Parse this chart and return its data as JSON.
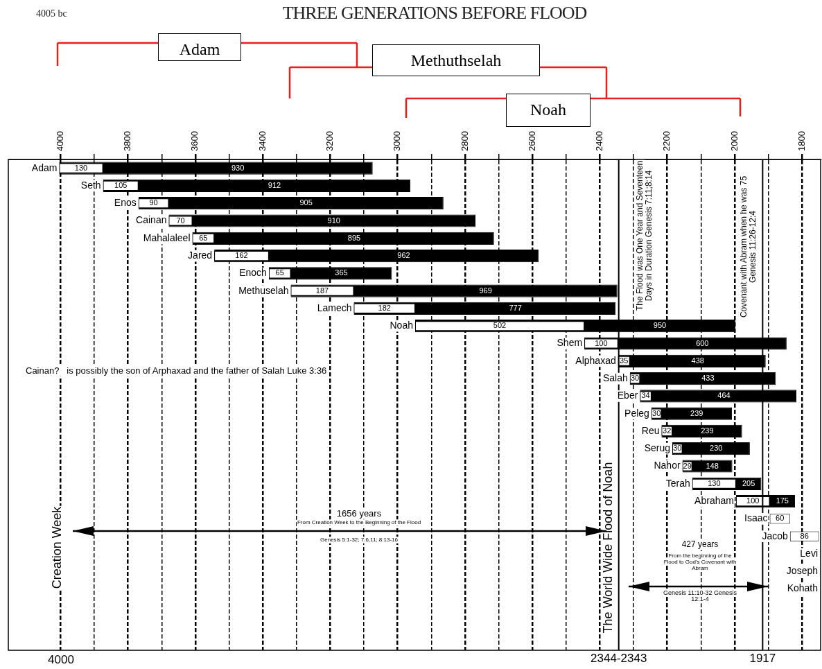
{
  "chart_data": {
    "type": "bar",
    "orientation": "horizontal",
    "title": "THREE GENERATIONS BEFORE FLOOD",
    "categories": [
      "Adam",
      "Seth",
      "Enos",
      "Cainan",
      "Mahalaleel",
      "Jared",
      "Enoch",
      "Methuselah",
      "Lamech",
      "Noah",
      "Shem",
      "Alphaxad",
      "Salah",
      "Eber",
      "Peleg",
      "Reu",
      "Serug",
      "Nahor",
      "Terah",
      "Abraham",
      "Isaac",
      "Jacob",
      "Levi",
      "Joseph",
      "Kohath",
      null,
      null,
      null
    ],
    "series": [
      {
        "color": "#ffffff",
        "base": [
          3874,
          3769,
          3679,
          3609,
          3544,
          3382,
          3317,
          3130,
          2948,
          2446,
          2346,
          2311,
          2281,
          2247,
          2217,
          2185,
          2155,
          2126,
          1996,
          1896,
          1836,
          1750,
          null,
          null,
          null,
          null,
          null,
          null
        ],
        "values": [
          130,
          105,
          90,
          70,
          65,
          162,
          65,
          187,
          182,
          502,
          100,
          35,
          30,
          34,
          30,
          32,
          30,
          29,
          130,
          100,
          60,
          86,
          null,
          null,
          null,
          null,
          null,
          null
        ],
        "value_labels": [
          "130",
          "105",
          "90",
          "70",
          "65",
          "162",
          "65",
          "187",
          "182",
          "502",
          "100",
          "35",
          "30",
          "34",
          "30",
          "32",
          "30",
          "29",
          "130",
          "100",
          "60",
          "86",
          null,
          null,
          null,
          null,
          null,
          null
        ]
      },
      {
        "color": "#000000",
        "base": [
          3074,
          2962,
          2864,
          2769,
          2714,
          2582,
          3017,
          2348,
          2353,
          1998,
          1846,
          1908,
          1878,
          1817,
          2008,
          1978,
          1955,
          2007,
          1921,
          1821,
          null,
          null,
          null,
          null,
          null,
          null,
          null,
          null
        ],
        "values": [
          930,
          912,
          905,
          910,
          895,
          962,
          365,
          969,
          777,
          950,
          600,
          438,
          433,
          464,
          239,
          239,
          230,
          148,
          205,
          175,
          null,
          null,
          null,
          null,
          null,
          null,
          null,
          null
        ],
        "value_labels": [
          "930",
          "912",
          "905",
          "910",
          "895",
          "962",
          "365",
          "969",
          "777",
          "950",
          "600",
          "438",
          "433",
          "464",
          "239",
          "239",
          "230",
          "148",
          "205",
          "175",
          null,
          null,
          null,
          null,
          null,
          null,
          null,
          null
        ]
      }
    ],
    "xlim": [
      4155,
      1745
    ],
    "xticks": [
      4000,
      {
        "value": 3900,
        "label": null
      },
      3800,
      {
        "value": 3700,
        "label": null
      },
      3600,
      {
        "value": 3500,
        "label": null
      },
      3400,
      {
        "value": 3300,
        "label": null
      },
      3200,
      {
        "value": 3100,
        "label": null
      },
      3000,
      {
        "value": 2900,
        "label": null
      },
      2800,
      {
        "value": 2700,
        "label": null
      },
      2600,
      {
        "value": 2500,
        "label": null
      },
      2400,
      {
        "value": 2300,
        "label": null
      },
      2200,
      {
        "value": 2100,
        "label": null
      },
      2000,
      {
        "value": 1900,
        "label": null
      },
      1800
    ],
    "grid": "x",
    "ref_lines": [
      {
        "axis": "x",
        "value": 2344,
        "label": "2344-2343",
        "color": "#000000"
      },
      {
        "axis": "x",
        "value": 1917,
        "label": "1917",
        "color": "#000000"
      }
    ],
    "annotations": [
      "4005 bc",
      "Adam",
      "Methuthselah",
      "Noah",
      "The Flood was One Year and Seventeen Days in Duration Genesis 7:11;8:14",
      "Covenant with Abram when he was 75 Genesis 11:26-12:4",
      "Cainan?   is possibly the son of Arphaxad and the father of Salah Luke 3:36",
      "Creation Week",
      "The World Wide Flood of Noah",
      "1656 years",
      "From Creation Week to the Beginning of the Flood",
      "Genesis 5:1-32; 7:6,11; 8:13-16",
      "427 years",
      "From the beginning of the Flood to God's Covenant with Abram",
      "Genesis 11:10-32 Genesis 12:1-4",
      "4000"
    ]
  }
}
